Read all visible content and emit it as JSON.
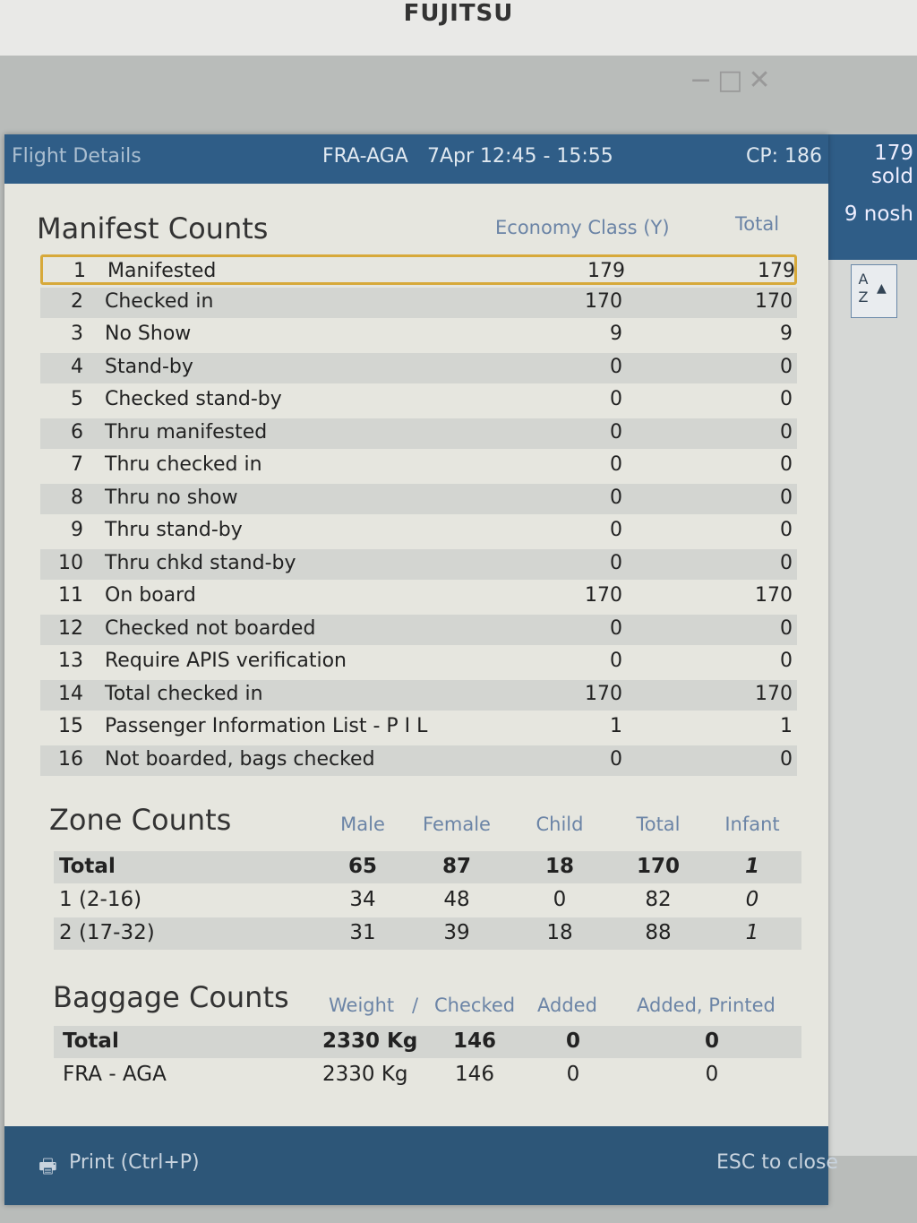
{
  "brand": "FUJITSU",
  "header": {
    "title": "Flight Details",
    "route": "FRA-AGA",
    "date_time": "7Apr 12:45 - 15:55",
    "cp": "CP: 186"
  },
  "side": {
    "sold": "179 sold",
    "noshow": "9 nosh",
    "sort_label": "A Z"
  },
  "manifest": {
    "title": "Manifest Counts",
    "col_class": "Economy Class (Y)",
    "col_total": "Total",
    "rows": [
      {
        "n": "1",
        "label": "Manifested",
        "y": "179",
        "total": "179"
      },
      {
        "n": "2",
        "label": "Checked in",
        "y": "170",
        "total": "170"
      },
      {
        "n": "3",
        "label": "No Show",
        "y": "9",
        "total": "9"
      },
      {
        "n": "4",
        "label": "Stand-by",
        "y": "0",
        "total": "0"
      },
      {
        "n": "5",
        "label": "Checked stand-by",
        "y": "0",
        "total": "0"
      },
      {
        "n": "6",
        "label": "Thru manifested",
        "y": "0",
        "total": "0"
      },
      {
        "n": "7",
        "label": "Thru checked in",
        "y": "0",
        "total": "0"
      },
      {
        "n": "8",
        "label": "Thru no show",
        "y": "0",
        "total": "0"
      },
      {
        "n": "9",
        "label": "Thru stand-by",
        "y": "0",
        "total": "0"
      },
      {
        "n": "10",
        "label": "Thru chkd stand-by",
        "y": "0",
        "total": "0"
      },
      {
        "n": "11",
        "label": "On board",
        "y": "170",
        "total": "170"
      },
      {
        "n": "12",
        "label": "Checked not boarded",
        "y": "0",
        "total": "0"
      },
      {
        "n": "13",
        "label": "Require APIS verification",
        "y": "0",
        "total": "0"
      },
      {
        "n": "14",
        "label": "Total checked in",
        "y": "170",
        "total": "170"
      },
      {
        "n": "15",
        "label": "Passenger Information List - P I L",
        "y": "1",
        "total": "1"
      },
      {
        "n": "16",
        "label": "Not boarded, bags checked",
        "y": "0",
        "total": "0"
      }
    ]
  },
  "zone": {
    "title": "Zone Counts",
    "headers": [
      "Male",
      "Female",
      "Child",
      "Total",
      "Infant"
    ],
    "rows": [
      {
        "label": "Total",
        "values": [
          "65",
          "87",
          "18",
          "170",
          "1"
        ]
      },
      {
        "label": "1 (2-16)",
        "values": [
          "34",
          "48",
          "0",
          "82",
          "0"
        ]
      },
      {
        "label": "2 (17-32)",
        "values": [
          "31",
          "39",
          "18",
          "88",
          "1"
        ]
      }
    ]
  },
  "baggage": {
    "title": "Baggage Counts",
    "headers": [
      "Weight",
      "/",
      "Checked",
      "Added",
      "Added, Printed"
    ],
    "rows": [
      {
        "label": "Total",
        "values": [
          "2330 Kg",
          "146",
          "0",
          "0"
        ]
      },
      {
        "label": "FRA - AGA",
        "values": [
          "2330 Kg",
          "146",
          "0",
          "0"
        ]
      }
    ]
  },
  "footer": {
    "print": "Print (Ctrl+P)",
    "close": "ESC to close"
  },
  "colors": {
    "header": "#2f5d87",
    "highlight": "#d7a93a",
    "column_header": "#6b84a6"
  }
}
